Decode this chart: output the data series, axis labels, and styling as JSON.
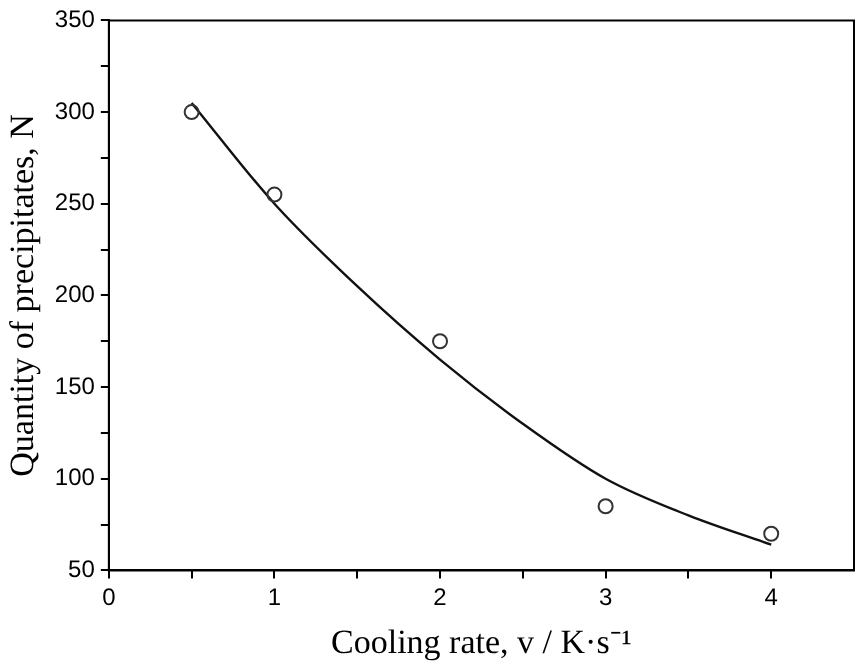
{
  "chart_data": {
    "type": "scatter",
    "xlabel": "Cooling rate, v / K·s⁻¹",
    "ylabel": "Quantity of precipitates, N",
    "xlim": [
      0,
      4.5
    ],
    "xticks": [
      0,
      {
        "value": 0.5,
        "label": null
      },
      1,
      {
        "value": 1.5,
        "label": null
      },
      2,
      {
        "value": 2.5,
        "label": null
      },
      3,
      {
        "value": 3.5,
        "label": null
      },
      4
    ],
    "ylim": [
      50,
      350
    ],
    "yticks": [
      50,
      {
        "value": 75,
        "label": null
      },
      100,
      {
        "value": 125,
        "label": null
      },
      150,
      {
        "value": 175,
        "label": null
      },
      200,
      {
        "value": 225,
        "label": null
      },
      250,
      {
        "value": 275,
        "label": null
      },
      300,
      {
        "value": 325,
        "label": null
      },
      350
    ],
    "grid": false,
    "marker": "circle",
    "series": [
      {
        "type": "scatter",
        "color": "#333333",
        "x": [
          0.5,
          1,
          2,
          3,
          4
        ],
        "values": [
          300,
          255,
          175,
          85,
          70
        ]
      },
      {
        "type": "line",
        "color": "#111111",
        "line_style": "solid",
        "marker": "none",
        "x": [
          0.5,
          1,
          1.5,
          2,
          2.5,
          3,
          3.5,
          4
        ],
        "values": [
          305,
          250,
          205,
          165,
          130,
          100,
          80,
          64
        ]
      }
    ]
  }
}
